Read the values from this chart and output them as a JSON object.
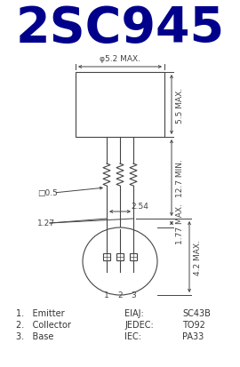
{
  "title": "2SC945",
  "title_color": "#00008B",
  "bg_color": "#ffffff",
  "dim_color": "#444444",
  "text_color": "#333333",
  "title_fontsize": 40,
  "dim_fontsize": 6.5,
  "label_fontsize": 7,
  "pin_labels": [
    "1.   Emitter",
    "2.   Collector",
    "3.   Base"
  ],
  "std_labels": [
    "EIAJ:",
    "JEDEC:",
    "IEC:"
  ],
  "std_values": [
    "SC43B",
    "TO92",
    "PA33"
  ],
  "dim_phi52": "φ5.2 MAX.",
  "dim_55": "5.5 MAX.",
  "dim_127_label": "12.7 MIN.",
  "dim_254": "2.54",
  "dim_177": "1.77 MAX.",
  "dim_42": "4.2 MAX.",
  "dim_05": "□0.5",
  "dim_127b": "1.27"
}
